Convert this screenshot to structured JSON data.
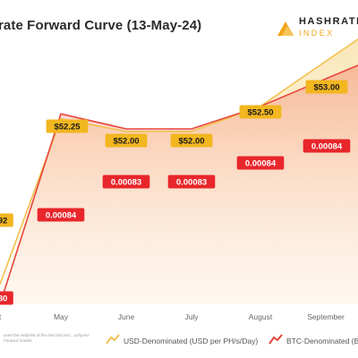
{
  "header": {
    "title": "rate Forward Curve (13-May-24)",
    "logo_line1": "HASHRATE",
    "logo_line2": "INDEX"
  },
  "footnote": "used the midpoint of the best bid and ...ashprice Forward market.",
  "colors": {
    "usd_line": "#f2c14e",
    "btc_line": "#e8453c",
    "usd_label_bg": "#f2b61f",
    "btc_label_bg": "#e8262b",
    "tick_text": "#666666"
  },
  "chart_data": {
    "type": "line",
    "title": "rate Forward Curve (13-May-24)",
    "categories": [
      "t",
      "May",
      "June",
      "July",
      "August",
      "September"
    ],
    "ylim": [
      0,
      1
    ],
    "series": [
      {
        "name": "USD-Denominated (USD per PH/s/Day)",
        "color": "#f2c14e",
        "values": [
          0.08,
          0.74,
          0.69,
          0.69,
          0.79,
          0.97
        ],
        "labels": [
          "92",
          "$52.25",
          "$52.00",
          "$52.00",
          "$52.50",
          "$53.00"
        ]
      },
      {
        "name": "BTC-Denominated (B",
        "color": "#e8453c",
        "values": [
          0.0,
          0.76,
          0.7,
          0.7,
          0.79,
          0.9
        ],
        "labels": [
          "80",
          "0.00084",
          "0.00083",
          "0.00083",
          "0.00084",
          "0.00084"
        ]
      }
    ]
  }
}
